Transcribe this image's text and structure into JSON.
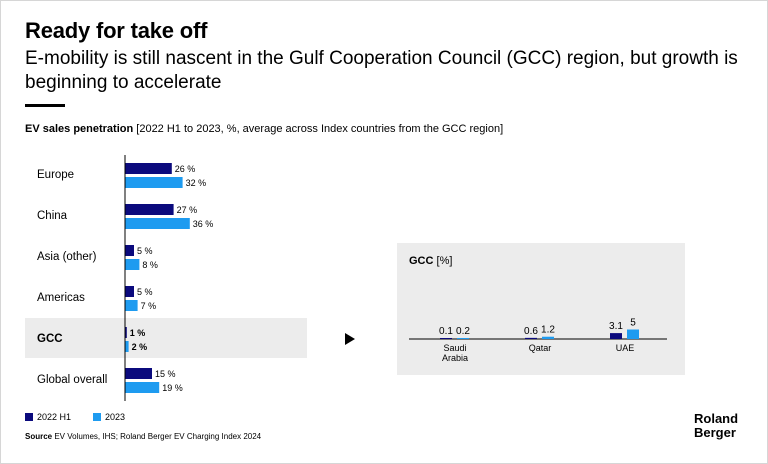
{
  "header": {
    "title": "Ready for take off",
    "subtitle": "E-mobility is still nascent in the Gulf Cooperation Council (GCC) region, but growth is beginning to accelerate"
  },
  "chart_header": {
    "label_bold": "EV sales penetration",
    "label_rest": " [2022 H1 to 2023, %, average across Index countries from the GCC region]"
  },
  "colors": {
    "series_2022": "#0b0a7d",
    "series_2023": "#1e9bf0",
    "panel_bg": "#ececec"
  },
  "legend": {
    "item1": "2022 H1",
    "item2": "2023"
  },
  "source": {
    "label": "Source",
    "text": " EV Volumes, IHS; Roland Berger EV Charging Index 2024"
  },
  "logo": {
    "line1": "Roland",
    "line2": "Berger"
  },
  "gcc_panel": {
    "title_bold": "GCC",
    "title_rest": " [%]"
  },
  "chart_data": [
    {
      "type": "bar",
      "orientation": "horizontal",
      "categories": [
        "Europe",
        "China",
        "Asia (other)",
        "Americas",
        "GCC",
        "Global overall"
      ],
      "series": [
        {
          "name": "2022 H1",
          "values": [
            26,
            27,
            5,
            5,
            1,
            15
          ]
        },
        {
          "name": "2023",
          "values": [
            32,
            36,
            8,
            7,
            2,
            19
          ]
        }
      ],
      "value_labels": [
        [
          "26 %",
          "27 %",
          "5 %",
          "5 %",
          "1 %",
          "15 %"
        ],
        [
          "32 %",
          "36 %",
          "8 %",
          "7 %",
          "2 %",
          "19 %"
        ]
      ],
      "highlight_category": "GCC"
    },
    {
      "type": "bar",
      "title": "GCC [%]",
      "categories": [
        "Saudi Arabia",
        "Qatar",
        "UAE"
      ],
      "category_lines": [
        [
          "Saudi",
          "Arabia"
        ],
        [
          "Qatar"
        ],
        [
          "UAE"
        ]
      ],
      "series": [
        {
          "name": "2022 H1",
          "values": [
            0.1,
            0.6,
            3.1
          ]
        },
        {
          "name": "2023",
          "values": [
            0.2,
            1.2,
            5
          ]
        }
      ],
      "value_labels": [
        [
          "0.1",
          "0.6",
          "3.1"
        ],
        [
          "0.2",
          "1.2",
          "5"
        ]
      ]
    }
  ]
}
